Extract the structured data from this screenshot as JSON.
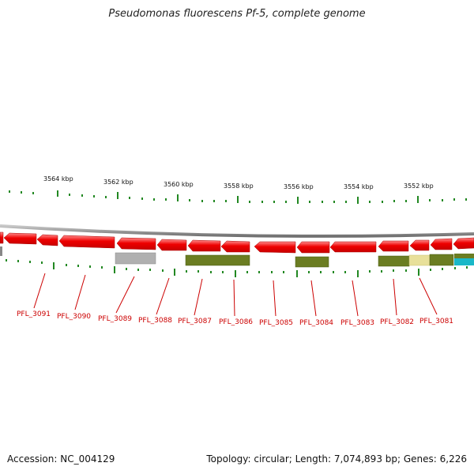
{
  "title": "Pseudomonas fluorescens Pf-5, complete genome",
  "footer": {
    "accession": "Accession: NC_004129",
    "info": "Topology: circular; Length: 7,074,893 bp; Genes: 6,226"
  },
  "scale_labels": [
    "3564 kbp",
    "3562 kbp",
    "3560 kbp",
    "3558 kbp",
    "3556 kbp",
    "3554 kbp",
    "3552 kbp"
  ],
  "gene_labels": [
    "PFL_3091",
    "PFL_3090",
    "PFL_3089",
    "PFL_3088",
    "PFL_3087",
    "PFL_3086",
    "PFL_3085",
    "PFL_3084",
    "PFL_3083",
    "PFL_3082",
    "PFL_3081"
  ],
  "colors": {
    "cds": "#ee0000",
    "cds_light": "#ff7777",
    "backbone": "#888888",
    "tick": "#228822",
    "label": "#cc0000",
    "olive": "#6b7d22",
    "gray_feature": "#b0b0b0",
    "yellow_feature": "#e8e09a",
    "cyan_feature": "#1ab8c8"
  }
}
